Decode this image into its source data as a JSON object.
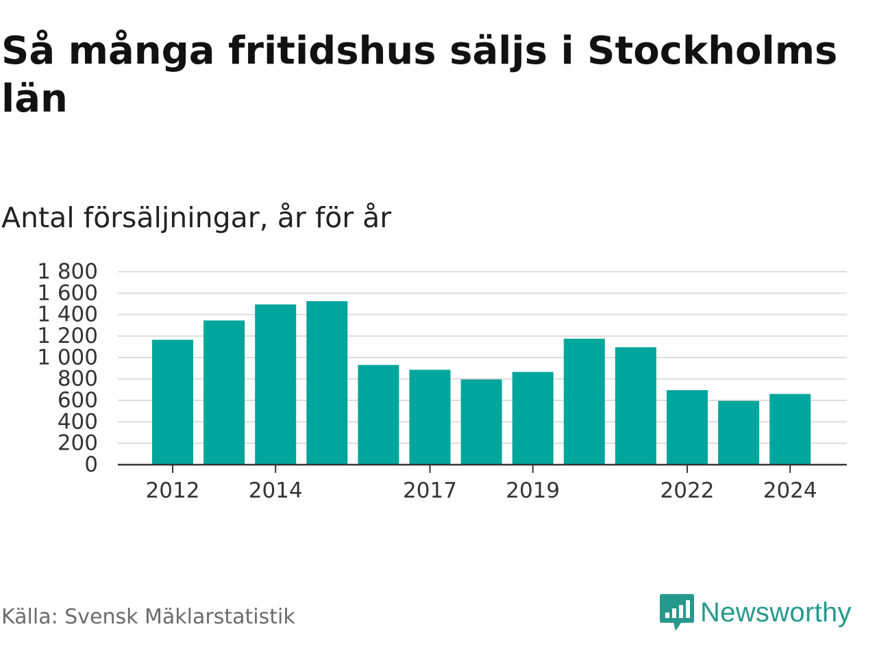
{
  "title": "Så många fritidshus säljs i Stockholms län",
  "subtitle": "Antal försäljningar, år för år",
  "source": "Källa: Svensk Mäklarstatistik",
  "brand": {
    "name": "Newsworthy",
    "icon": "newsworthy-logo-icon",
    "color": "#26998c"
  },
  "chart_data": {
    "type": "bar",
    "x": [
      2012,
      2013,
      2014,
      2015,
      2016,
      2017,
      2018,
      2019,
      2020,
      2021,
      2022,
      2023,
      2024
    ],
    "values": [
      1165,
      1345,
      1495,
      1525,
      930,
      885,
      795,
      865,
      1175,
      1095,
      695,
      595,
      660
    ],
    "x_tick_labels": [
      "2012",
      "2014",
      "2017",
      "2019",
      "2022",
      "2024"
    ],
    "y_ticks": [
      0,
      200,
      400,
      600,
      800,
      1000,
      1200,
      1400,
      1600,
      1800
    ],
    "y_tick_labels": [
      "0",
      "200",
      "400",
      "600",
      "800",
      "1 000",
      "1 200",
      "1 400",
      "1 600",
      "1 800"
    ],
    "ylim": [
      0,
      1800
    ],
    "bar_color": "#00a59b",
    "grid": true,
    "legend": false
  }
}
